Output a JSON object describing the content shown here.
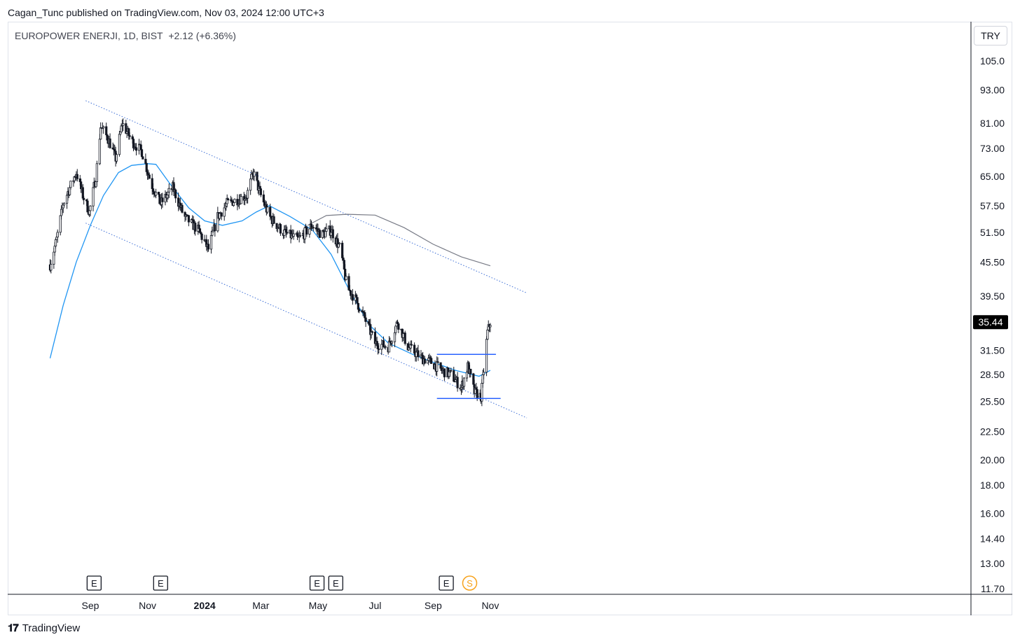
{
  "header": {
    "publish_line": "Cagan_Tunc published on TradingView.com, Nov 03, 2024 12:00 UTC+3"
  },
  "symbol": {
    "description": "EUROPOWER ENERJI, 1D, BIST",
    "change": "+2.12 (+6.36%)"
  },
  "currency_label": "TRY",
  "footer": {
    "brand": "TradingView",
    "logo_icon": "tradingview-logo-icon"
  },
  "colors": {
    "up_candle": "#ffffff",
    "down_candle": "#131722",
    "ma_short": "#2196f3",
    "ma_long": "#787b86",
    "channel": "#3d6fd6",
    "level": "#2962ff",
    "price_tag": "#000000",
    "dividend": "#f7a21b"
  },
  "chart_data": {
    "type": "candlestick",
    "scale": "log",
    "x_ticks": [
      {
        "date": "2023-09-01",
        "label": "Sep",
        "bold": false
      },
      {
        "date": "2023-11-01",
        "label": "Nov",
        "bold": false
      },
      {
        "date": "2024-01-01",
        "label": "2024",
        "bold": true
      },
      {
        "date": "2024-03-01",
        "label": "Mar",
        "bold": false
      },
      {
        "date": "2024-05-01",
        "label": "May",
        "bold": false
      },
      {
        "date": "2024-07-01",
        "label": "Jul",
        "bold": false
      },
      {
        "date": "2024-09-01",
        "label": "Sep",
        "bold": false
      },
      {
        "date": "2024-11-01",
        "label": "Nov",
        "bold": false
      }
    ],
    "y_ticks": [
      "105.0",
      "93.00",
      "81.00",
      "73.00",
      "65.00",
      "57.50",
      "51.50",
      "45.50",
      "39.50",
      "31.50",
      "28.50",
      "25.50",
      "22.50",
      "20.00",
      "18.00",
      "16.00",
      "14.40",
      "13.00",
      "11.70"
    ],
    "last_price": "35.44",
    "price_path": [
      [
        "2023-07-20",
        45.0
      ],
      [
        "2023-07-27",
        50.0
      ],
      [
        "2023-08-03",
        58.0
      ],
      [
        "2023-08-10",
        62.0
      ],
      [
        "2023-08-17",
        66.0
      ],
      [
        "2023-08-24",
        60.0
      ],
      [
        "2023-08-31",
        56.0
      ],
      [
        "2023-09-07",
        65.0
      ],
      [
        "2023-09-12",
        80.0
      ],
      [
        "2023-09-20",
        76.0
      ],
      [
        "2023-09-28",
        70.0
      ],
      [
        "2023-10-05",
        81.0
      ],
      [
        "2023-10-16",
        75.0
      ],
      [
        "2023-10-26",
        72.0
      ],
      [
        "2023-11-05",
        63.0
      ],
      [
        "2023-11-15",
        58.0
      ],
      [
        "2023-11-28",
        62.0
      ],
      [
        "2023-12-10",
        55.0
      ],
      [
        "2023-12-25",
        52.0
      ],
      [
        "2024-01-05",
        48.0
      ],
      [
        "2024-01-15",
        55.0
      ],
      [
        "2024-01-25",
        58.0
      ],
      [
        "2024-02-05",
        59.0
      ],
      [
        "2024-02-15",
        60.0
      ],
      [
        "2024-02-22",
        66.0
      ],
      [
        "2024-03-01",
        60.0
      ],
      [
        "2024-03-10",
        55.0
      ],
      [
        "2024-03-25",
        51.5
      ],
      [
        "2024-04-10",
        50.0
      ],
      [
        "2024-04-25",
        53.0
      ],
      [
        "2024-05-05",
        51.0
      ],
      [
        "2024-05-15",
        52.0
      ],
      [
        "2024-05-25",
        48.0
      ],
      [
        "2024-06-01",
        41.0
      ],
      [
        "2024-06-10",
        39.0
      ],
      [
        "2024-06-20",
        36.0
      ],
      [
        "2024-07-01",
        32.5
      ],
      [
        "2024-07-15",
        32.0
      ],
      [
        "2024-07-25",
        35.5
      ],
      [
        "2024-08-05",
        32.0
      ],
      [
        "2024-08-20",
        30.5
      ],
      [
        "2024-08-30",
        30.0
      ],
      [
        "2024-09-10",
        29.0
      ],
      [
        "2024-09-20",
        28.5
      ],
      [
        "2024-10-01",
        27.0
      ],
      [
        "2024-10-08",
        29.5
      ],
      [
        "2024-10-15",
        26.5
      ],
      [
        "2024-10-22",
        26.0
      ],
      [
        "2024-10-25",
        29.0
      ],
      [
        "2024-10-29",
        34.0
      ],
      [
        "2024-11-01",
        35.44
      ]
    ],
    "ma_50": [
      [
        "2023-07-20",
        30.5
      ],
      [
        "2023-08-03",
        38.0
      ],
      [
        "2023-08-17",
        45.5
      ],
      [
        "2023-09-01",
        53.0
      ],
      [
        "2023-09-15",
        60.0
      ],
      [
        "2023-10-01",
        66.0
      ],
      [
        "2023-10-15",
        68.0
      ],
      [
        "2023-11-01",
        68.5
      ],
      [
        "2023-11-10",
        68.3
      ],
      [
        "2023-11-25",
        63.0
      ],
      [
        "2023-12-15",
        57.0
      ],
      [
        "2024-01-01",
        54.0
      ],
      [
        "2024-01-20",
        53.0
      ],
      [
        "2024-02-10",
        54.0
      ],
      [
        "2024-02-25",
        56.0
      ],
      [
        "2024-03-10",
        57.5
      ],
      [
        "2024-04-01",
        55.0
      ],
      [
        "2024-04-25",
        52.0
      ],
      [
        "2024-05-15",
        47.0
      ],
      [
        "2024-06-05",
        40.0
      ],
      [
        "2024-06-25",
        35.0
      ],
      [
        "2024-07-15",
        32.5
      ],
      [
        "2024-08-10",
        31.0
      ],
      [
        "2024-09-01",
        30.0
      ],
      [
        "2024-09-25",
        29.0
      ],
      [
        "2024-10-20",
        28.3
      ],
      [
        "2024-11-01",
        29.0
      ]
    ],
    "ma_200": [
      [
        "2024-04-20",
        53.0
      ],
      [
        "2024-05-10",
        55.2
      ],
      [
        "2024-06-01",
        55.5
      ],
      [
        "2024-07-01",
        55.3
      ],
      [
        "2024-08-01",
        52.5
      ],
      [
        "2024-09-01",
        49.0
      ],
      [
        "2024-10-01",
        46.5
      ],
      [
        "2024-11-01",
        44.8
      ]
    ],
    "channel_upper": [
      [
        "2023-08-27",
        89.0
      ],
      [
        "2024-12-10",
        40.0
      ]
    ],
    "channel_lower": [
      [
        "2023-08-27",
        53.5
      ],
      [
        "2024-12-10",
        23.8
      ]
    ],
    "level_lines": [
      {
        "price": 31.0,
        "from": "2024-09-05",
        "to": "2024-11-07"
      },
      {
        "price": 25.8,
        "from": "2024-09-05",
        "to": "2024-11-12"
      }
    ],
    "events": [
      {
        "date": "2023-09-05",
        "label": "E",
        "kind": "earnings"
      },
      {
        "date": "2023-11-15",
        "label": "E",
        "kind": "earnings"
      },
      {
        "date": "2024-04-30",
        "label": "E",
        "kind": "earnings"
      },
      {
        "date": "2024-05-20",
        "label": "E",
        "kind": "earnings"
      },
      {
        "date": "2024-09-15",
        "label": "E",
        "kind": "earnings"
      },
      {
        "date": "2024-10-10",
        "label": "S",
        "kind": "split"
      }
    ]
  }
}
